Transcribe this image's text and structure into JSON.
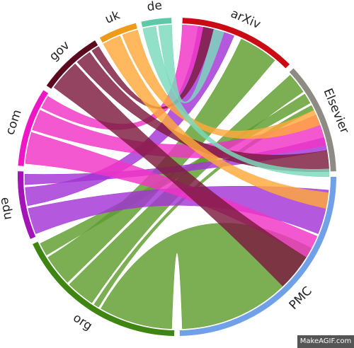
{
  "diagram": {
    "type": "chord",
    "segments": [
      {
        "id": "arXiv",
        "label": "arXiv",
        "color": "#cc0a16",
        "ribbon": "#a80f26",
        "start": 2,
        "end": 45
      },
      {
        "id": "Elsevier",
        "label": "Elsevier",
        "color": "#8e8b84",
        "ribbon": "#ffffff",
        "start": 47,
        "end": 88
      },
      {
        "id": "PMC",
        "label": "PMC",
        "color": "#6fa0e8",
        "ribbon": "#6fa0e8",
        "start": 90,
        "end": 179
      },
      {
        "id": "org",
        "label": "org",
        "color": "#3e8512",
        "ribbon": "#5f9e2e",
        "start": 181,
        "end": 245
      },
      {
        "id": "edu",
        "label": "edu",
        "color": "#a313b8",
        "ribbon": "#a333d6",
        "start": 247,
        "end": 272
      },
      {
        "id": "com",
        "label": "com",
        "color": "#f016c8",
        "ribbon": "#f233c6",
        "start": 274,
        "end": 303
      },
      {
        "id": "gov",
        "label": "gov",
        "color": "#5c0a1f",
        "ribbon": "#7c1a3e",
        "start": 305,
        "end": 329
      },
      {
        "id": "uk",
        "label": "uk",
        "color": "#f09a1a",
        "ribbon": "#ffa83a",
        "start": 331,
        "end": 345
      },
      {
        "id": "de",
        "label": "de",
        "color": "#5cc9a8",
        "ribbon": "#7ad9bc",
        "start": 347,
        "end": 358
      }
    ],
    "ribbons": [
      {
        "from": "org",
        "a": [
          182,
          210
        ],
        "b": [
          118,
          178
        ]
      },
      {
        "from": "org",
        "a": [
          226,
          238
        ],
        "b": [
          25,
          40
        ]
      },
      {
        "from": "org",
        "a": [
          214,
          225
        ],
        "b": [
          48,
          56
        ]
      },
      {
        "from": "org",
        "a": [
          239,
          244
        ],
        "b": [
          57,
          61
        ]
      },
      {
        "from": "org",
        "a": [
          211,
          213
        ],
        "b": [
          62,
          64
        ]
      },
      {
        "from": "edu",
        "a": [
          248,
          258
        ],
        "b": [
          95,
          112
        ]
      },
      {
        "from": "edu",
        "a": [
          259,
          266
        ],
        "b": [
          8,
          22
        ]
      },
      {
        "from": "edu",
        "a": [
          267,
          271
        ],
        "b": [
          75,
          80
        ]
      },
      {
        "from": "com",
        "a": [
          275,
          287
        ],
        "b": [
          113,
          122
        ]
      },
      {
        "from": "com",
        "a": [
          288,
          296
        ],
        "b": [
          66,
          78
        ]
      },
      {
        "from": "com",
        "a": [
          297,
          302
        ],
        "b": [
          2,
          10
        ]
      },
      {
        "from": "gov",
        "a": [
          306,
          318
        ],
        "b": [
          122,
          136
        ]
      },
      {
        "from": "gov",
        "a": [
          319,
          325
        ],
        "b": [
          80,
          88
        ]
      },
      {
        "from": "gov",
        "a": [
          326,
          329
        ],
        "b": [
          10,
          14
        ]
      },
      {
        "from": "uk",
        "a": [
          331,
          338
        ],
        "b": [
          96,
          102
        ]
      },
      {
        "from": "uk",
        "a": [
          339,
          345
        ],
        "b": [
          64,
          70
        ]
      },
      {
        "from": "de",
        "a": [
          347,
          352
        ],
        "b": [
          87,
          90
        ]
      },
      {
        "from": "de",
        "a": [
          353,
          358
        ],
        "b": [
          14,
          18
        ]
      }
    ]
  },
  "watermark": "MakeAGIF.com"
}
